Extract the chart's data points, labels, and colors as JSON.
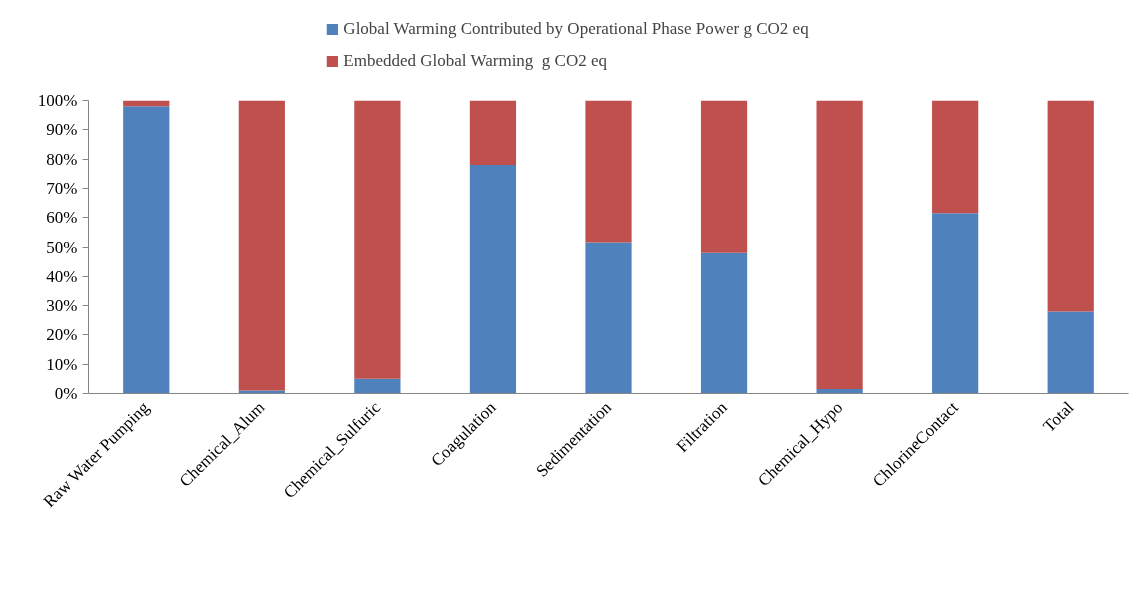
{
  "chart_data": {
    "type": "bar",
    "stacked": true,
    "categories": [
      "Raw Water Pumping",
      "Chemical_Alum",
      "Chemical_Sulfuric",
      "Coagulation",
      "Sedimentation",
      "Filtration",
      "Chemical_Hypo",
      "ChlorineContact",
      "Total"
    ],
    "series": [
      {
        "name": "Global Warming Contributed by Operational Phase Power g CO2 eq",
        "color": "#4f81bd",
        "values": [
          98,
          1,
          5,
          78,
          51.5,
          48,
          1.5,
          61.5,
          28
        ]
      },
      {
        "name": "Embedded Global Warming  g CO2 eq",
        "color": "#c0504d",
        "values": [
          2,
          99,
          95,
          22,
          48.5,
          52,
          98.5,
          38.5,
          72
        ]
      }
    ],
    "ylim": [
      0,
      100
    ],
    "yticks": [
      {
        "value": 0,
        "label": "0%"
      },
      {
        "value": 10,
        "label": "10%"
      },
      {
        "value": 20,
        "label": "20%"
      },
      {
        "value": 30,
        "label": "30%"
      },
      {
        "value": 40,
        "label": "40%"
      },
      {
        "value": 50,
        "label": "50%"
      },
      {
        "value": 60,
        "label": "60%"
      },
      {
        "value": 70,
        "label": "70%"
      },
      {
        "value": 80,
        "label": "80%"
      },
      {
        "value": 90,
        "label": "90%"
      },
      {
        "value": 100,
        "label": "100%"
      }
    ],
    "grid": false,
    "legend": "top"
  }
}
